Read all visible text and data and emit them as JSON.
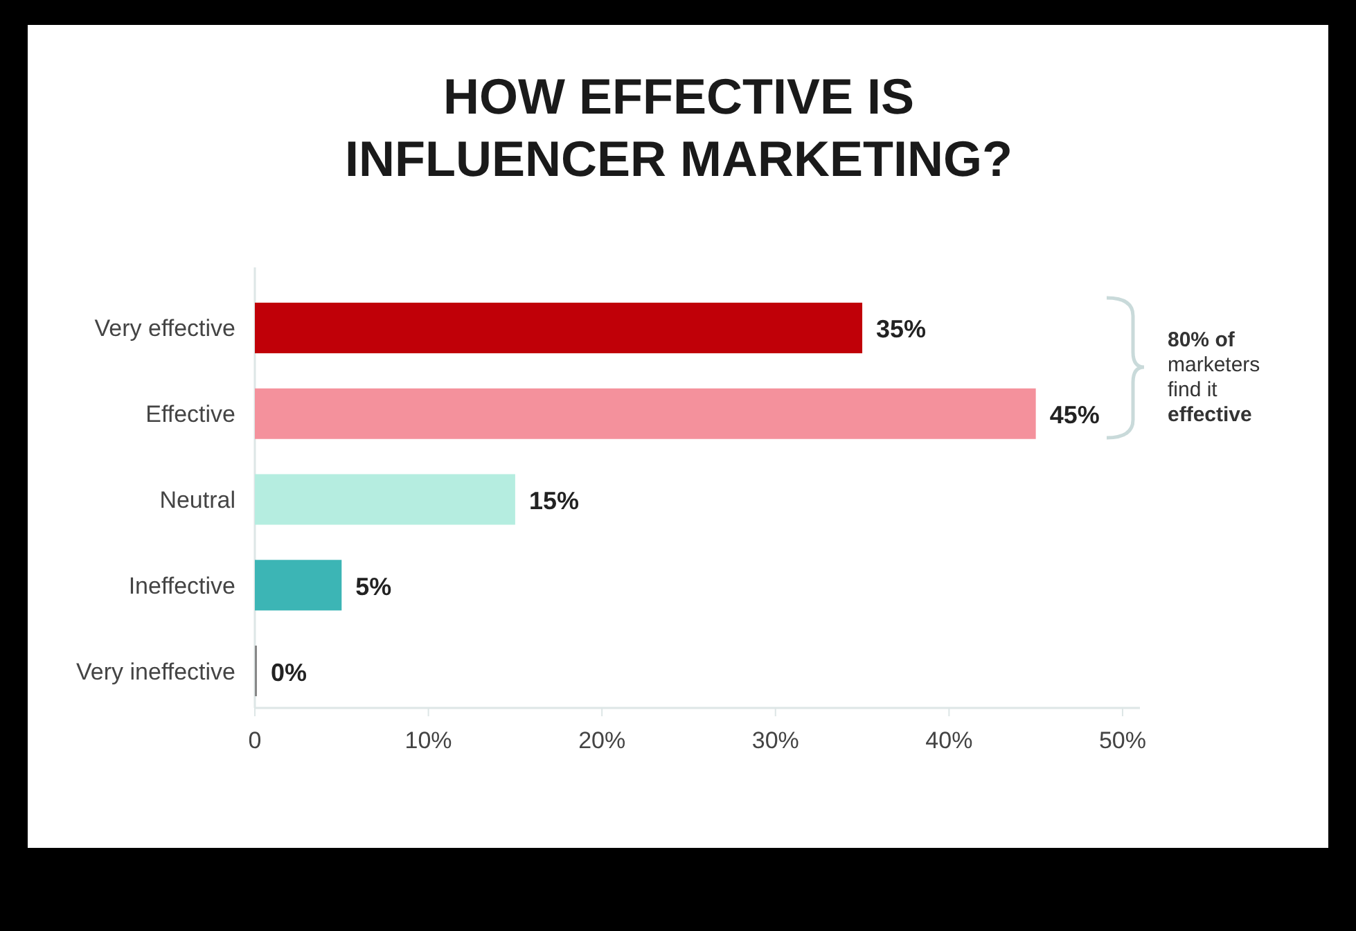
{
  "chart_data": {
    "type": "bar",
    "orientation": "horizontal",
    "title": "HOW EFFECTIVE IS INFLUENCER MARKETING?",
    "categories": [
      "Very effective",
      "Effective",
      "Neutral",
      "Ineffective",
      "Very ineffective"
    ],
    "values": [
      35,
      45,
      15,
      5,
      0
    ],
    "colors": [
      "#c00008",
      "#f4919c",
      "#b5ede0",
      "#3cb5b5",
      "#888888"
    ],
    "value_labels": [
      "35%",
      "45%",
      "15%",
      "5%",
      "0%"
    ],
    "xlim": [
      0,
      51
    ],
    "xticks": [
      0,
      {
        "value": 10,
        "label": "10%"
      },
      {
        "value": 20,
        "label": "20%"
      },
      {
        "value": 30,
        "label": "30%"
      },
      {
        "value": 40,
        "label": "40%"
      },
      {
        "value": 50,
        "label": "50%"
      }
    ],
    "annotations": [
      "80% of marketers find it effective"
    ]
  }
}
